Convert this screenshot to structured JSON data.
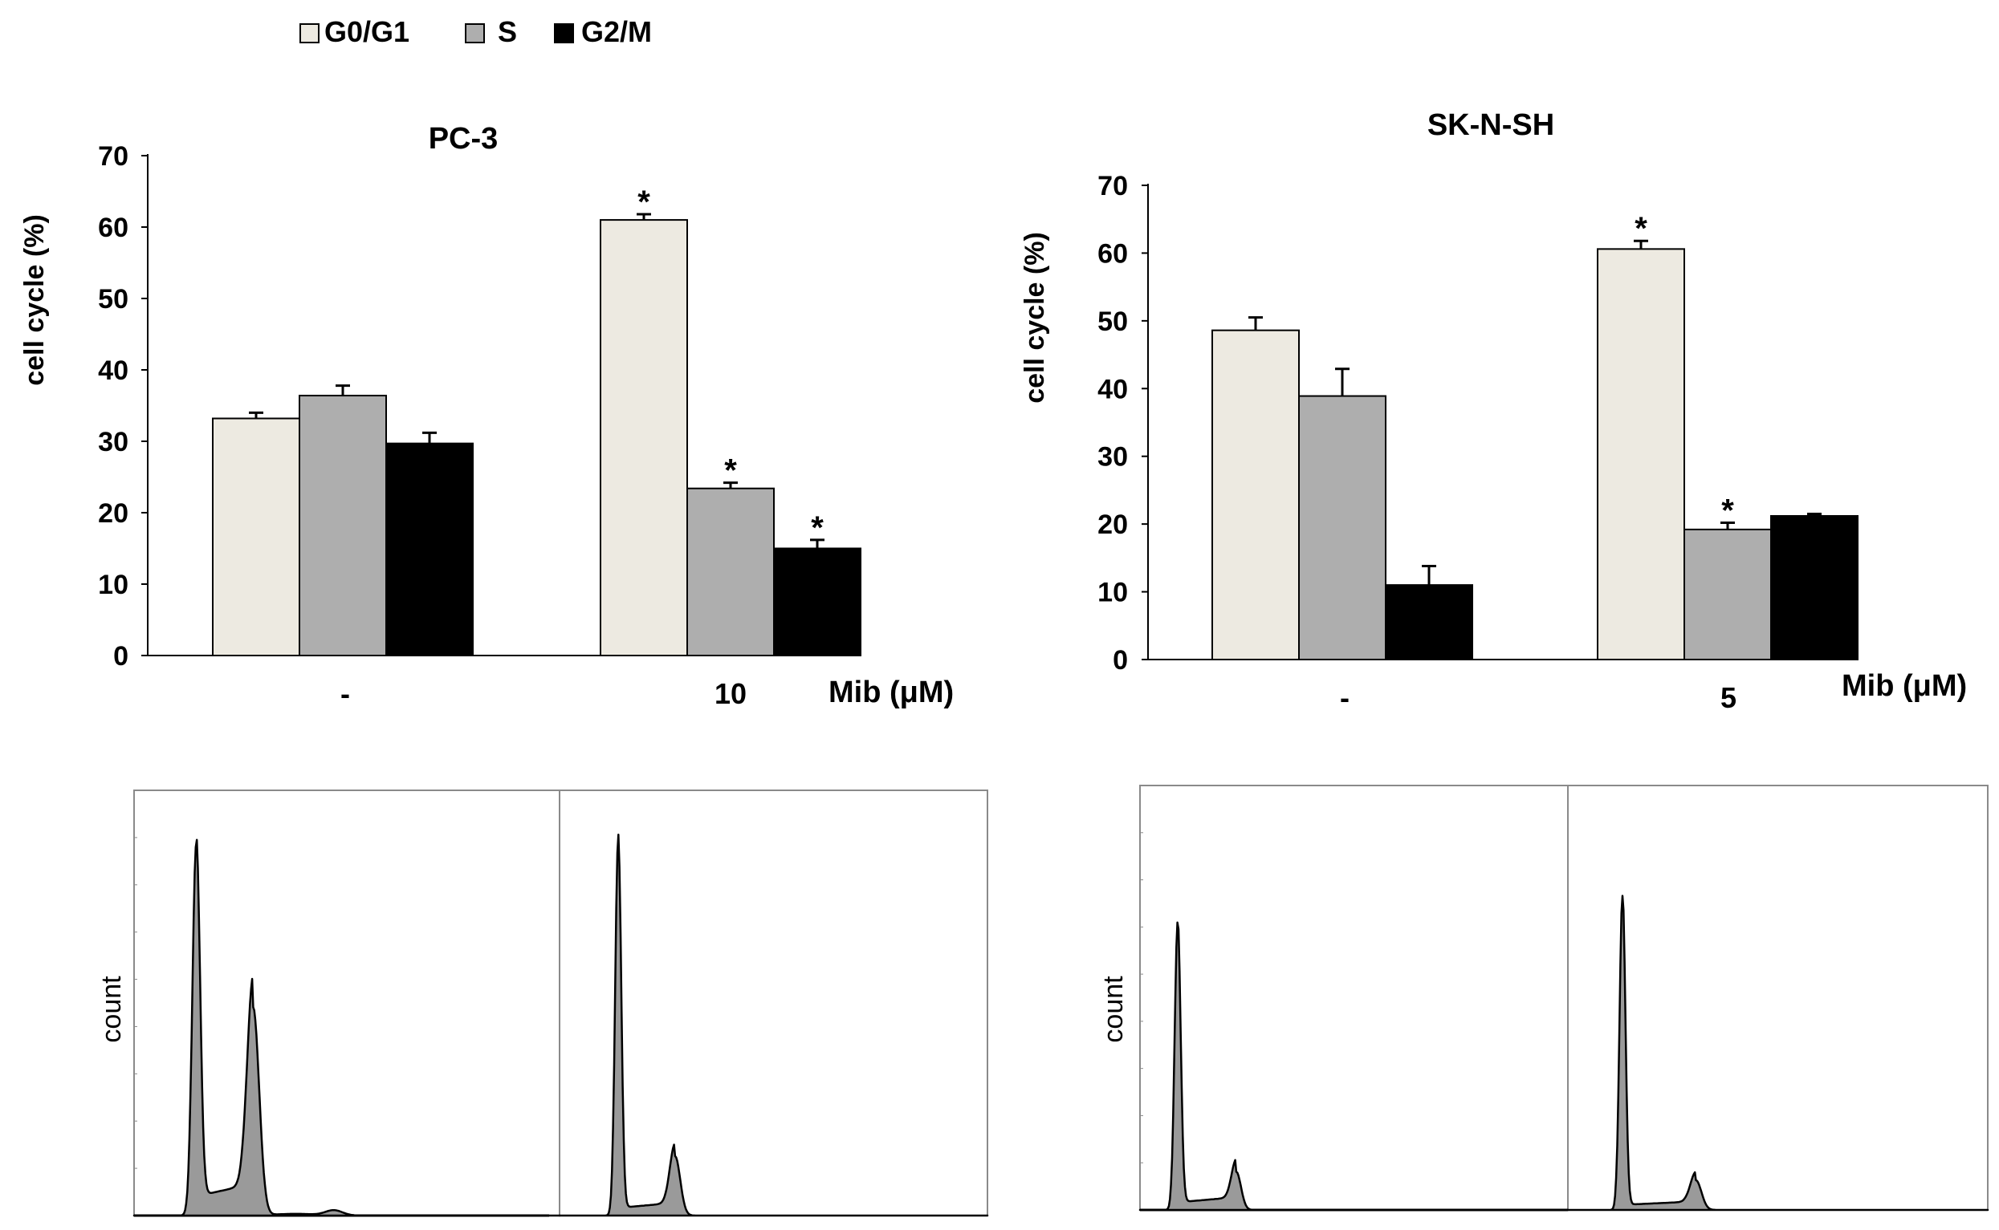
{
  "legend": {
    "items": [
      {
        "label": "G0/G1",
        "color": "#edeae1"
      },
      {
        "label": "S",
        "color": "#aeaeae"
      },
      {
        "label": "G2/M",
        "color": "#000000"
      }
    ]
  },
  "chart_data": [
    {
      "type": "bar",
      "title": "PC-3",
      "ylabel": "cell cycle (%)",
      "xlabel": "Mib (μM)",
      "ylim": [
        0,
        70
      ],
      "yticks": [
        0,
        10,
        20,
        30,
        40,
        50,
        60,
        70
      ],
      "categories": [
        "-",
        "10"
      ],
      "series": [
        {
          "name": "G0/G1",
          "values": [
            33.2,
            61.0
          ],
          "errors": [
            0.8,
            0.8
          ],
          "significant": [
            false,
            true
          ]
        },
        {
          "name": "S",
          "values": [
            36.4,
            23.4
          ],
          "errors": [
            1.4,
            0.8
          ],
          "significant": [
            false,
            true
          ]
        },
        {
          "name": "G2/M",
          "values": [
            29.7,
            15.0
          ],
          "errors": [
            1.5,
            1.2
          ],
          "significant": [
            false,
            true
          ]
        }
      ],
      "significance_marker": "*"
    },
    {
      "type": "bar",
      "title": "SK-N-SH",
      "ylabel": "cell cycle (%)",
      "xlabel": "Mib (μM)",
      "ylim": [
        0,
        70
      ],
      "yticks": [
        0,
        10,
        20,
        30,
        40,
        50,
        60,
        70
      ],
      "categories": [
        "-",
        "5"
      ],
      "series": [
        {
          "name": "G0/G1",
          "values": [
            48.6,
            60.6
          ],
          "errors": [
            1.9,
            1.2
          ],
          "significant": [
            false,
            true
          ]
        },
        {
          "name": "S",
          "values": [
            38.9,
            19.2
          ],
          "errors": [
            4.0,
            1.0
          ],
          "significant": [
            false,
            true
          ]
        },
        {
          "name": "G2/M",
          "values": [
            11.0,
            21.2
          ],
          "errors": [
            2.8,
            0.3
          ],
          "significant": [
            false,
            false
          ]
        }
      ],
      "significance_marker": "*"
    }
  ],
  "histograms": [
    {
      "ylabel": "count",
      "panels": [
        {
          "condition": "-",
          "g1_peak_height": 0.85,
          "g2_peak_height": 0.49
        },
        {
          "condition": "10",
          "g1_peak_height": 0.88,
          "g2_peak_height": 0.14
        }
      ]
    },
    {
      "ylabel": "count",
      "panels": [
        {
          "condition": "-",
          "g1_peak_height": 0.67,
          "g2_peak_height": 0.09
        },
        {
          "condition": "5",
          "g1_peak_height": 0.74,
          "g2_peak_height": 0.07
        }
      ]
    }
  ]
}
